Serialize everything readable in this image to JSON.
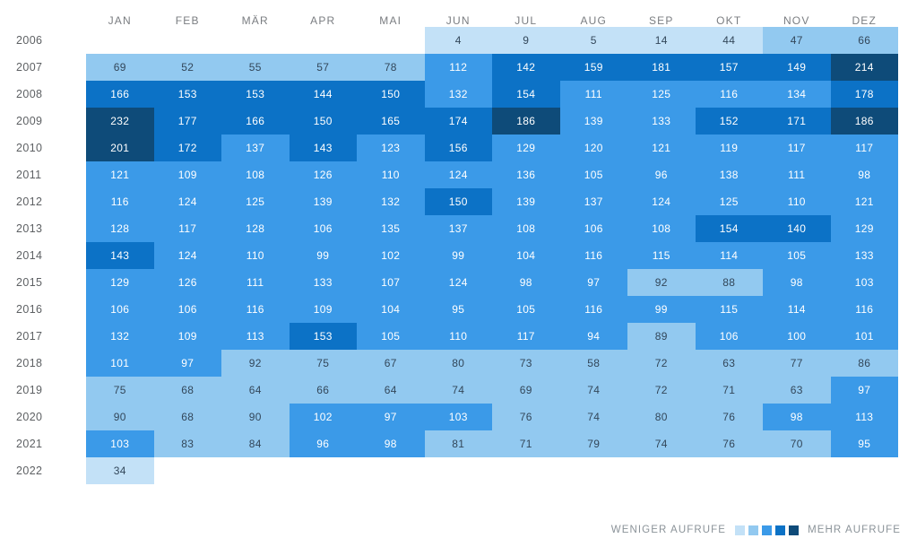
{
  "chart_data": {
    "type": "heatmap",
    "title": "",
    "columns": [
      "JAN",
      "FEB",
      "MÄR",
      "APR",
      "MAI",
      "JUN",
      "JUL",
      "AUG",
      "SEP",
      "OKT",
      "NOV",
      "DEZ"
    ],
    "rows": [
      "2006",
      "2007",
      "2008",
      "2009",
      "2010",
      "2011",
      "2012",
      "2013",
      "2014",
      "2015",
      "2016",
      "2017",
      "2018",
      "2019",
      "2020",
      "2021",
      "2022"
    ],
    "values": [
      [
        null,
        null,
        null,
        null,
        null,
        4,
        9,
        5,
        14,
        44,
        47,
        66
      ],
      [
        69,
        52,
        55,
        57,
        78,
        112,
        142,
        159,
        181,
        157,
        149,
        214
      ],
      [
        166,
        153,
        153,
        144,
        150,
        132,
        154,
        111,
        125,
        116,
        134,
        178
      ],
      [
        232,
        177,
        166,
        150,
        165,
        174,
        186,
        139,
        133,
        152,
        171,
        186
      ],
      [
        201,
        172,
        137,
        143,
        123,
        156,
        129,
        120,
        121,
        119,
        117,
        117
      ],
      [
        121,
        109,
        108,
        126,
        110,
        124,
        136,
        105,
        96,
        138,
        111,
        98
      ],
      [
        116,
        124,
        125,
        139,
        132,
        150,
        139,
        137,
        124,
        125,
        110,
        121
      ],
      [
        128,
        117,
        128,
        106,
        135,
        137,
        108,
        106,
        108,
        154,
        140,
        129
      ],
      [
        143,
        124,
        110,
        99,
        102,
        99,
        104,
        116,
        115,
        114,
        105,
        133
      ],
      [
        129,
        126,
        111,
        133,
        107,
        124,
        98,
        97,
        92,
        88,
        98,
        103
      ],
      [
        106,
        106,
        116,
        109,
        104,
        95,
        105,
        116,
        99,
        115,
        114,
        116
      ],
      [
        132,
        109,
        113,
        153,
        105,
        110,
        117,
        94,
        89,
        106,
        100,
        101
      ],
      [
        101,
        97,
        92,
        75,
        67,
        80,
        73,
        58,
        72,
        63,
        77,
        86
      ],
      [
        75,
        68,
        64,
        66,
        64,
        74,
        69,
        74,
        72,
        71,
        63,
        97
      ],
      [
        90,
        68,
        90,
        102,
        97,
        103,
        76,
        74,
        80,
        76,
        98,
        113
      ],
      [
        103,
        83,
        84,
        96,
        98,
        81,
        71,
        79,
        74,
        76,
        70,
        95
      ],
      [
        34,
        null,
        null,
        null,
        null,
        null,
        null,
        null,
        null,
        null,
        null,
        null
      ]
    ],
    "value_range": [
      0,
      232
    ],
    "color_buckets": {
      "thresholds": [
        46.4,
        92.8,
        139.2,
        185.6
      ],
      "palette": [
        "#c3e1f7",
        "#92c9f0",
        "#3b9ae8",
        "#0c72c6",
        "#0e4b79"
      ],
      "text_on_light": "#33475a",
      "text_on_dark": "#ffffff",
      "first_dark_text_bucket": 2
    },
    "legend": {
      "less_label": "WENIGER AUFRUFE",
      "more_label": "MEHR AUFRUFE"
    }
  }
}
